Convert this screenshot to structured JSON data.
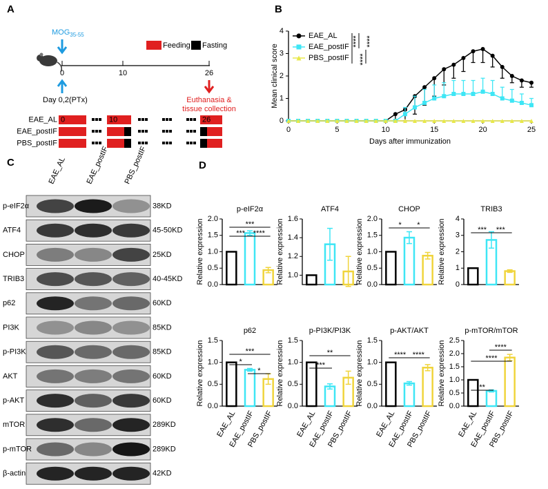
{
  "panel_labels": {
    "a": "A",
    "b": "B",
    "c": "C",
    "d": "D"
  },
  "timeline": {
    "antigen": "MOG",
    "antigen_sub": "35-55",
    "days": [
      "0",
      "10",
      "26"
    ],
    "ptx": "Day 0,2(PTx)",
    "endpoint": [
      "Euthanasia &",
      "tissue collection"
    ],
    "legend": [
      "Feeding",
      "Fasting"
    ],
    "groups": [
      "EAE_AL",
      "EAE_postIF",
      "PBS_postIF"
    ],
    "block_labels": [
      "0",
      "10",
      "26"
    ]
  },
  "blot": {
    "lanes": [
      "EAE_AL",
      "EAE_postIF",
      "PBS_postIF"
    ],
    "rows": [
      {
        "protein": "p-eIF2α",
        "size": "38KD"
      },
      {
        "protein": "ATF4",
        "size": "45-50KD"
      },
      {
        "protein": "CHOP",
        "size": "25KD"
      },
      {
        "protein": "TRIB3",
        "size": "40-45KD"
      },
      {
        "protein": "p62",
        "size": "60KD"
      },
      {
        "protein": "PI3K",
        "size": "85KD"
      },
      {
        "protein": "p-PI3K",
        "size": "85KD"
      },
      {
        "protein": "AKT",
        "size": "60KD"
      },
      {
        "protein": "p-AKT",
        "size": "60KD"
      },
      {
        "protein": "mTOR",
        "size": "289KD"
      },
      {
        "protein": "p-mTOR",
        "size": "289KD"
      },
      {
        "protein": "β-actin",
        "size": "42KD"
      }
    ]
  },
  "chart_data": [
    {
      "type": "line",
      "xlabel": "Days after immunization",
      "ylabel": "Mean clinical score",
      "xlim": [
        0,
        25
      ],
      "ylim": [
        0,
        4
      ],
      "xticks": [
        0,
        5,
        10,
        15,
        20,
        25
      ],
      "yticks": [
        0,
        1,
        2,
        3,
        4
      ],
      "x": [
        0,
        1,
        2,
        3,
        4,
        5,
        6,
        7,
        8,
        9,
        10,
        11,
        12,
        13,
        14,
        15,
        16,
        17,
        18,
        19,
        20,
        21,
        22,
        23,
        24,
        25
      ],
      "series": [
        {
          "name": "EAE_AL",
          "color": "#000000",
          "values": [
            0,
            0,
            0,
            0,
            0,
            0,
            0,
            0,
            0,
            0,
            0,
            0.3,
            0.5,
            1.1,
            1.5,
            1.9,
            2.3,
            2.5,
            2.8,
            3.1,
            3.2,
            2.9,
            2.4,
            2.0,
            1.8,
            1.7
          ],
          "errors": [
            0,
            0,
            0,
            0,
            0,
            0,
            0,
            0,
            0,
            0,
            0,
            0.3,
            0.5,
            0.8,
            0.8,
            0.8,
            0.7,
            0.6,
            0.6,
            0.5,
            0.6,
            0.5,
            0.5,
            0.3,
            0.3,
            0.2
          ]
        },
        {
          "name": "EAE_postIF",
          "color": "#3ee6f5",
          "values": [
            0,
            0,
            0,
            0,
            0,
            0,
            0,
            0,
            0,
            0,
            0,
            0,
            0.3,
            0.6,
            0.8,
            1.0,
            1.1,
            1.2,
            1.2,
            1.2,
            1.3,
            1.2,
            1.0,
            0.9,
            0.8,
            0.7
          ],
          "errors": [
            0,
            0,
            0,
            0,
            0,
            0,
            0,
            0,
            0,
            0,
            0,
            0,
            0.3,
            0.5,
            0.6,
            0.6,
            0.6,
            0.6,
            0.6,
            0.6,
            0.6,
            0.6,
            0.5,
            0.5,
            0.4,
            0.3
          ]
        },
        {
          "name": "PBS_postIF",
          "color": "#e8e84a",
          "values": [
            0,
            0,
            0,
            0,
            0,
            0,
            0,
            0,
            0,
            0,
            0,
            0,
            0,
            0,
            0,
            0,
            0,
            0,
            0,
            0,
            0,
            0,
            0,
            0,
            0,
            0
          ]
        }
      ],
      "annotations": [
        "****",
        "****",
        "****"
      ]
    },
    {
      "type": "bar",
      "title": "p-eIF2α",
      "ylabel": "Relative expression",
      "colors": [
        "#000000",
        "#3ee6f5",
        "#f0d43c"
      ],
      "values": [
        1.0,
        1.57,
        0.44
      ],
      "errors": [
        0,
        0.07,
        0.08
      ],
      "ylim": [
        0,
        2
      ],
      "yticks": [
        {
          "value": 0,
          "label": "0.0"
        },
        0.5,
        {
          "value": 1,
          "label": "1.0"
        },
        1.5,
        {
          "value": 2,
          "label": "2.0"
        }
      ],
      "annotations": [
        "***",
        "***",
        "****"
      ]
    },
    {
      "type": "bar",
      "title": "ATF4",
      "ylabel": "Relative expression",
      "colors": [
        "#000000",
        "#3ee6f5",
        "#f0d43c"
      ],
      "values": [
        1.0,
        1.33,
        1.04
      ],
      "errors": [
        0,
        0.17,
        0.16
      ],
      "ylim": [
        0.9,
        1.6
      ],
      "yticks": [
        {
          "value": 1,
          "label": "1.0"
        },
        1.2,
        1.4,
        1.6
      ],
      "annotations": []
    },
    {
      "type": "bar",
      "title": "CHOP",
      "ylabel": "Relative expression",
      "colors": [
        "#000000",
        "#3ee6f5",
        "#f0d43c"
      ],
      "values": [
        1.0,
        1.43,
        0.88
      ],
      "errors": [
        0,
        0.18,
        0.1
      ],
      "ylim": [
        0,
        2
      ],
      "yticks": [
        {
          "value": 0,
          "label": "0.0"
        },
        0.5,
        {
          "value": 1,
          "label": "1.0"
        },
        1.5,
        {
          "value": 2,
          "label": "2.0"
        }
      ],
      "annotations": [
        "*",
        "*"
      ]
    },
    {
      "type": "bar",
      "title": "TRIB3",
      "ylabel": "Relative expression",
      "colors": [
        "#000000",
        "#3ee6f5",
        "#f0d43c"
      ],
      "values": [
        1.0,
        2.72,
        0.82
      ],
      "errors": [
        0,
        0.5,
        0.08
      ],
      "ylim": [
        0,
        4
      ],
      "yticks": [
        0,
        1,
        2,
        3,
        4
      ],
      "annotations": [
        "***",
        "***"
      ]
    },
    {
      "type": "bar",
      "title": "p62",
      "ylabel": "Relative expression",
      "colors": [
        "#000000",
        "#3ee6f5",
        "#f0d43c"
      ],
      "categories": [
        "EAE_AL",
        "EAE_postIF",
        "PBS_postIF"
      ],
      "values": [
        1.0,
        0.83,
        0.62
      ],
      "errors": [
        0,
        0.03,
        0.12
      ],
      "ylim": [
        0,
        1.5
      ],
      "yticks": [
        {
          "value": 0,
          "label": "0.0"
        },
        0.5,
        {
          "value": 1,
          "label": "1.0"
        },
        1.5
      ],
      "annotations": [
        "***",
        "*",
        "*"
      ]
    },
    {
      "type": "bar",
      "title": "p-PI3K/PI3K",
      "ylabel": "Relative expression",
      "colors": [
        "#000000",
        "#3ee6f5",
        "#f0d43c"
      ],
      "categories": [
        "EAE_AL",
        "EAE_postIF",
        "PBS_postIF"
      ],
      "values": [
        1.0,
        0.45,
        0.65
      ],
      "errors": [
        0,
        0.06,
        0.15
      ],
      "ylim": [
        0,
        1.5
      ],
      "yticks": [
        {
          "value": 0,
          "label": "0.0"
        },
        0.5,
        {
          "value": 1,
          "label": "1.0"
        },
        1.5
      ],
      "annotations": [
        "**",
        "***"
      ]
    },
    {
      "type": "bar",
      "title": "p-AKT/AKT",
      "ylabel": "Relative expression",
      "colors": [
        "#000000",
        "#3ee6f5",
        "#f0d43c"
      ],
      "categories": [
        "EAE_AL",
        "EAE_postIF",
        "PBS_postIF"
      ],
      "values": [
        1.0,
        0.52,
        0.88
      ],
      "errors": [
        0,
        0.04,
        0.07
      ],
      "ylim": [
        0,
        1.5
      ],
      "yticks": [
        {
          "value": 0,
          "label": "0.0"
        },
        0.5,
        {
          "value": 1,
          "label": "1.0"
        },
        1.5
      ],
      "annotations": [
        "****",
        "****"
      ]
    },
    {
      "type": "bar",
      "title": "p-mTOR/mTOR",
      "ylabel": "Relative expression",
      "colors": [
        "#000000",
        "#3ee6f5",
        "#f0d43c"
      ],
      "categories": [
        "EAE_AL",
        "EAE_postIF",
        "PBS_postIF"
      ],
      "values": [
        1.0,
        0.58,
        1.85
      ],
      "errors": [
        0,
        0.04,
        0.12
      ],
      "ylim": [
        0,
        2.5
      ],
      "yticks": [
        {
          "value": 0,
          "label": "0.0"
        },
        0.5,
        {
          "value": 1,
          "label": "1.0"
        },
        1.5,
        {
          "value": 2,
          "label": "2.0"
        },
        2.5
      ],
      "annotations": [
        "**",
        "****",
        "****"
      ]
    }
  ]
}
